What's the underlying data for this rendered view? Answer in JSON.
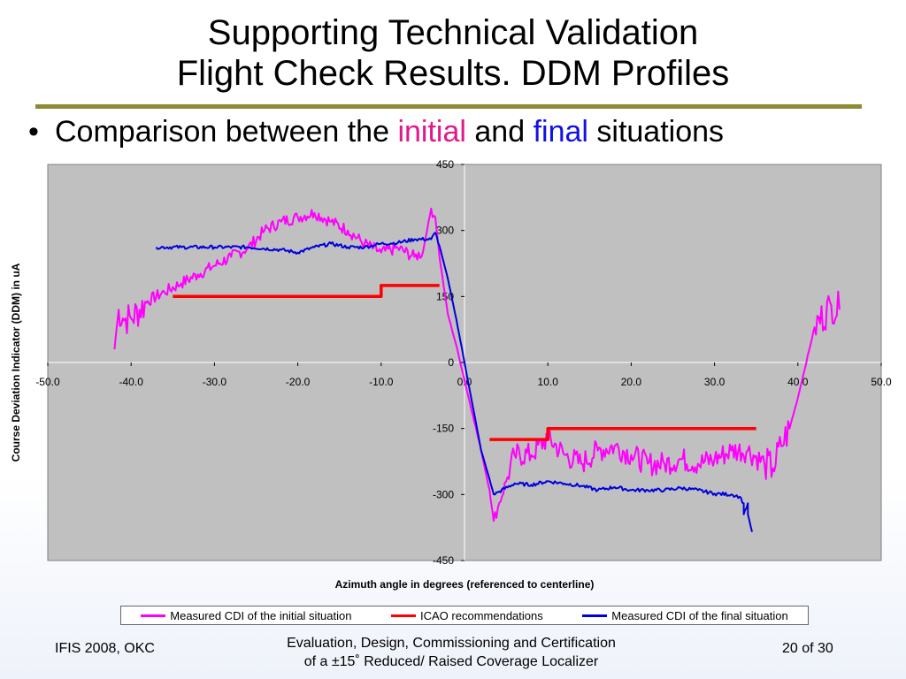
{
  "slide": {
    "title_line1": "Supporting Technical Validation",
    "title_line2": "Flight Check Results. DDM Profiles",
    "bullet_mark": "•",
    "bullet_prefix": "Comparison between the ",
    "bullet_initial": "initial",
    "bullet_and": " and ",
    "bullet_final": "final",
    "bullet_suffix": " situations",
    "footer_left": "IFIS 2008, OKC",
    "footer_center_line1": "Evaluation, Design, Commissioning and Certification",
    "footer_center_line2": "of a ±15˚  Reduced/ Raised Coverage Localizer",
    "footer_right": "20 of 30"
  },
  "colors": {
    "initial": "#ff00ff",
    "icao": "#ff0000",
    "final": "#0000dd",
    "plot_bg": "#c0c0c0",
    "rule": "#8e8a33"
  },
  "chart_data": {
    "type": "line",
    "title": "",
    "xlabel": "Azimuth angle in degrees (referenced to centerline)",
    "ylabel": "Course Deviation Indicator (DDM) in uA",
    "xlim": [
      -50,
      50
    ],
    "ylim": [
      -450,
      450
    ],
    "x_ticks": [
      "-50.0",
      "-40.0",
      "-30.0",
      "-20.0",
      "-10.0",
      "0.0",
      "10.0",
      "20.0",
      "30.0",
      "40.0",
      "50.0"
    ],
    "y_ticks": [
      "450",
      "300",
      "150",
      "0",
      "-150",
      "-300",
      "-450"
    ],
    "grid": "axes-crosshair",
    "legend_position": "bottom",
    "series": [
      {
        "name": "Measured CDI of the initial situation",
        "color": "#ff00ff",
        "noisy": true,
        "x": [
          -42.0,
          -41.5,
          -41.0,
          -40.0,
          -38.0,
          -36.0,
          -34.0,
          -32.0,
          -30.0,
          -28.0,
          -26.0,
          -24.0,
          -22.0,
          -20.0,
          -18.0,
          -16.0,
          -14.0,
          -12.0,
          -10.0,
          -8.0,
          -6.0,
          -5.0,
          -4.0,
          -3.5,
          -3.0,
          -2.0,
          -1.0,
          0.0,
          1.0,
          2.0,
          3.0,
          3.5,
          4.0,
          5.0,
          6.0,
          8.0,
          10.0,
          12.0,
          14.0,
          16.0,
          18.0,
          20.0,
          22.0,
          24.0,
          26.0,
          28.0,
          30.0,
          32.0,
          34.0,
          36.0,
          37.0,
          38.0,
          39.0,
          40.0,
          42.0,
          44.0,
          45.0
        ],
        "y": [
          30,
          120,
          100,
          100,
          140,
          160,
          180,
          200,
          220,
          240,
          260,
          300,
          320,
          330,
          340,
          320,
          300,
          270,
          250,
          260,
          240,
          250,
          350,
          330,
          240,
          110,
          40,
          -40,
          -120,
          -200,
          -290,
          -360,
          -330,
          -270,
          -210,
          -210,
          -170,
          -210,
          -230,
          -200,
          -190,
          -210,
          -230,
          -230,
          -220,
          -230,
          -220,
          -200,
          -200,
          -230,
          -240,
          -190,
          -150,
          -80,
          80,
          130,
          120
        ]
      },
      {
        "name": "ICAO recommendations",
        "color": "#ff0000",
        "noisy": false,
        "x": [
          -35.0,
          -10.0,
          -10.0,
          -3.0,
          null,
          3.0,
          10.0,
          10.0,
          35.0
        ],
        "y": [
          150,
          150,
          175,
          175,
          null,
          -175,
          -175,
          -150,
          -150
        ]
      },
      {
        "name": "Measured CDI of the final situation",
        "color": "#0000dd",
        "noisy": true,
        "x": [
          -37.0,
          -34.0,
          -30.0,
          -26.0,
          -22.0,
          -20.0,
          -18.0,
          -16.0,
          -14.0,
          -12.0,
          -10.0,
          -8.0,
          -6.0,
          -4.0,
          -3.5,
          -3.0,
          -2.0,
          -1.0,
          0.0,
          1.0,
          2.0,
          3.0,
          3.5,
          4.0,
          6.0,
          8.0,
          10.0,
          12.0,
          14.0,
          16.0,
          18.0,
          20.0,
          22.0,
          24.0,
          26.0,
          28.0,
          30.0,
          32.0,
          33.0,
          33.5,
          33.5,
          34.0,
          34.0,
          34.5
        ],
        "y": [
          262,
          262,
          262,
          262,
          256,
          250,
          262,
          270,
          262,
          262,
          270,
          272,
          280,
          280,
          295,
          265,
          190,
          100,
          0,
          -100,
          -200,
          -265,
          -300,
          -295,
          -275,
          -278,
          -270,
          -275,
          -280,
          -290,
          -283,
          -290,
          -290,
          -290,
          -285,
          -290,
          -298,
          -300,
          -305,
          -320,
          -345,
          -320,
          -345,
          -385
        ]
      }
    ]
  }
}
